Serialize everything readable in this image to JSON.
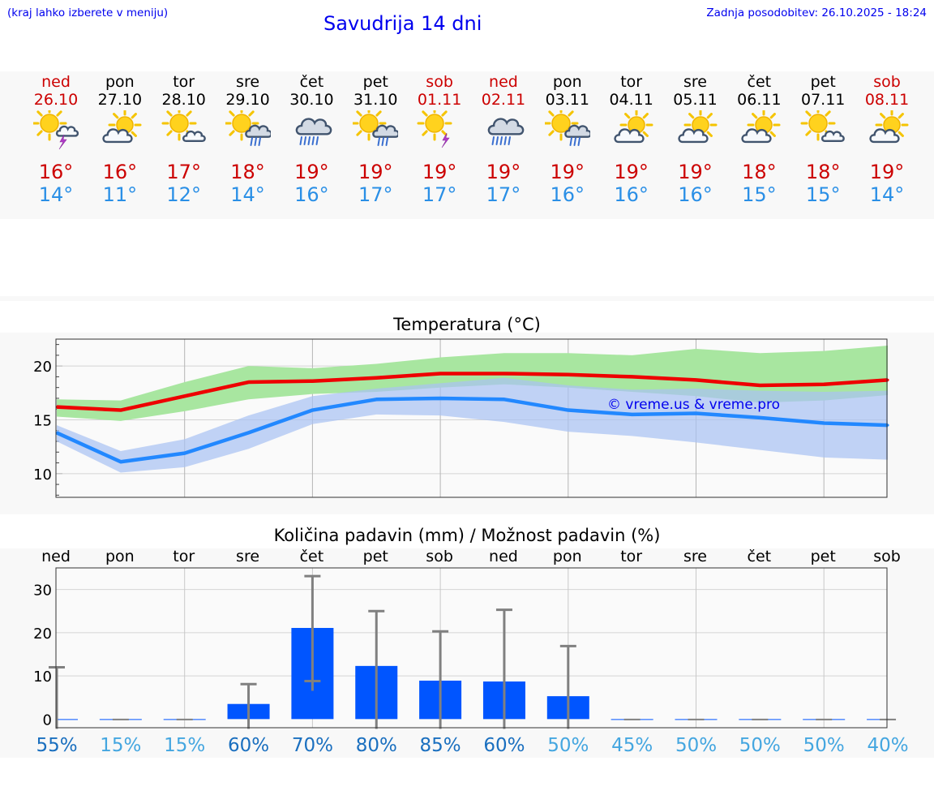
{
  "header": {
    "note": "(kraj lahko izberete v meniju)",
    "title": "Savudrija 14 dni",
    "updated": "Zadnja posodobitev: 26.10.2025 - 18:24"
  },
  "colors": {
    "link": "#0000ee",
    "weekend": "#cc0000",
    "weekday": "#000000",
    "max_temp": "#cc0000",
    "min_temp": "#2a8fe6",
    "max_line": "#ee0000",
    "max_band": "#a8e6a0",
    "min_line": "#2288ff",
    "min_band": "#a9c2f2",
    "precip_bar": "#0055ff",
    "error_bar": "#808080",
    "chance_high": "#1a6fbf",
    "chance_low": "#44a6e0",
    "watermark": "#0000ee"
  },
  "days": [
    {
      "name": "ned",
      "date": "26.10",
      "weekend": true,
      "icon": "sun-cloud-thunder-icon",
      "tmax": "16°",
      "tmin": "14°"
    },
    {
      "name": "pon",
      "date": "27.10",
      "weekend": false,
      "icon": "cloud-sun-icon",
      "tmax": "16°",
      "tmin": "11°"
    },
    {
      "name": "tor",
      "date": "28.10",
      "weekend": false,
      "icon": "sun-cloud-icon",
      "tmax": "17°",
      "tmin": "12°"
    },
    {
      "name": "sre",
      "date": "29.10",
      "weekend": false,
      "icon": "sun-cloud-rain-icon",
      "tmax": "18°",
      "tmin": "14°"
    },
    {
      "name": "čet",
      "date": "30.10",
      "weekend": false,
      "icon": "cloud-rain-icon",
      "tmax": "19°",
      "tmin": "16°"
    },
    {
      "name": "pet",
      "date": "31.10",
      "weekend": false,
      "icon": "sun-cloud-rain-icon",
      "tmax": "19°",
      "tmin": "17°"
    },
    {
      "name": "sob",
      "date": "01.11",
      "weekend": true,
      "icon": "sun-thunder-icon",
      "tmax": "19°",
      "tmin": "17°"
    },
    {
      "name": "ned",
      "date": "02.11",
      "weekend": true,
      "icon": "cloud-rain-icon",
      "tmax": "19°",
      "tmin": "17°"
    },
    {
      "name": "pon",
      "date": "03.11",
      "weekend": false,
      "icon": "sun-cloud-rain-icon",
      "tmax": "19°",
      "tmin": "16°"
    },
    {
      "name": "tor",
      "date": "04.11",
      "weekend": false,
      "icon": "cloud-sun-icon",
      "tmax": "19°",
      "tmin": "16°"
    },
    {
      "name": "sre",
      "date": "05.11",
      "weekend": false,
      "icon": "cloud-sun-icon",
      "tmax": "19°",
      "tmin": "16°"
    },
    {
      "name": "čet",
      "date": "06.11",
      "weekend": false,
      "icon": "cloud-sun-icon",
      "tmax": "18°",
      "tmin": "15°"
    },
    {
      "name": "pet",
      "date": "07.11",
      "weekend": false,
      "icon": "sun-cloud-icon",
      "tmax": "18°",
      "tmin": "15°"
    },
    {
      "name": "sob",
      "date": "08.11",
      "weekend": true,
      "icon": "cloud-sun-icon",
      "tmax": "19°",
      "tmin": "14°"
    }
  ],
  "chart_data": [
    {
      "type": "line",
      "title": "Temperatura (°C)",
      "xlabel": "",
      "ylabel": "",
      "ylim": [
        7.8,
        22.5
      ],
      "yticks": [
        10,
        15,
        20
      ],
      "x": [
        0,
        1,
        2,
        3,
        4,
        5,
        6,
        7,
        8,
        9,
        10,
        11,
        12,
        13
      ],
      "grid": true,
      "watermark": "© vreme.us & vreme.pro",
      "series": [
        {
          "key": "max",
          "values": [
            16.2,
            15.9,
            17.2,
            18.5,
            18.6,
            18.9,
            19.3,
            19.3,
            19.2,
            19.0,
            18.7,
            18.2,
            18.3,
            18.7
          ],
          "band_low": [
            15.3,
            14.9,
            15.8,
            16.9,
            17.4,
            17.6,
            18.0,
            18.3,
            18.0,
            17.6,
            17.2,
            16.6,
            16.8,
            17.3
          ],
          "band_high": [
            16.9,
            16.8,
            18.5,
            20.0,
            19.8,
            20.2,
            20.8,
            21.2,
            21.2,
            21.0,
            21.6,
            21.2,
            21.4,
            21.9
          ]
        },
        {
          "key": "min",
          "values": [
            13.8,
            11.1,
            11.9,
            13.8,
            15.9,
            16.9,
            17.0,
            16.9,
            15.9,
            15.5,
            15.6,
            15.2,
            14.7,
            14.5
          ],
          "band_low": [
            13.0,
            10.1,
            10.6,
            12.3,
            14.6,
            15.5,
            15.4,
            14.8,
            13.9,
            13.5,
            12.9,
            12.2,
            11.5,
            11.3
          ],
          "band_high": [
            14.5,
            12.1,
            13.2,
            15.4,
            17.2,
            17.9,
            18.4,
            18.9,
            18.2,
            17.8,
            17.9,
            17.7,
            17.6,
            17.7
          ]
        }
      ]
    },
    {
      "type": "bar",
      "title": "Količina padavin (mm) / Možnost padavin (%)",
      "categories": [
        "ned",
        "pon",
        "tor",
        "sre",
        "čet",
        "pet",
        "sob",
        "ned",
        "pon",
        "tor",
        "sre",
        "čet",
        "pet",
        "sob"
      ],
      "ylim": [
        -2,
        35
      ],
      "yticks": [
        0,
        10,
        20,
        30
      ],
      "grid": true,
      "values": [
        0,
        0,
        0,
        3.5,
        21.1,
        12.3,
        8.9,
        8.7,
        5.3,
        0,
        0,
        0,
        0,
        0
      ],
      "error_high": [
        12.0,
        0,
        0,
        8.1,
        33.1,
        25.0,
        20.3,
        25.3,
        16.9,
        0,
        0,
        0,
        0,
        0
      ],
      "error_low": [
        0,
        0,
        0,
        0,
        8.8,
        0,
        0,
        0,
        0,
        0,
        0,
        0,
        0,
        0
      ],
      "chance": [
        "55%",
        "15%",
        "15%",
        "60%",
        "70%",
        "80%",
        "85%",
        "60%",
        "50%",
        "45%",
        "50%",
        "50%",
        "50%",
        "40%"
      ]
    }
  ]
}
